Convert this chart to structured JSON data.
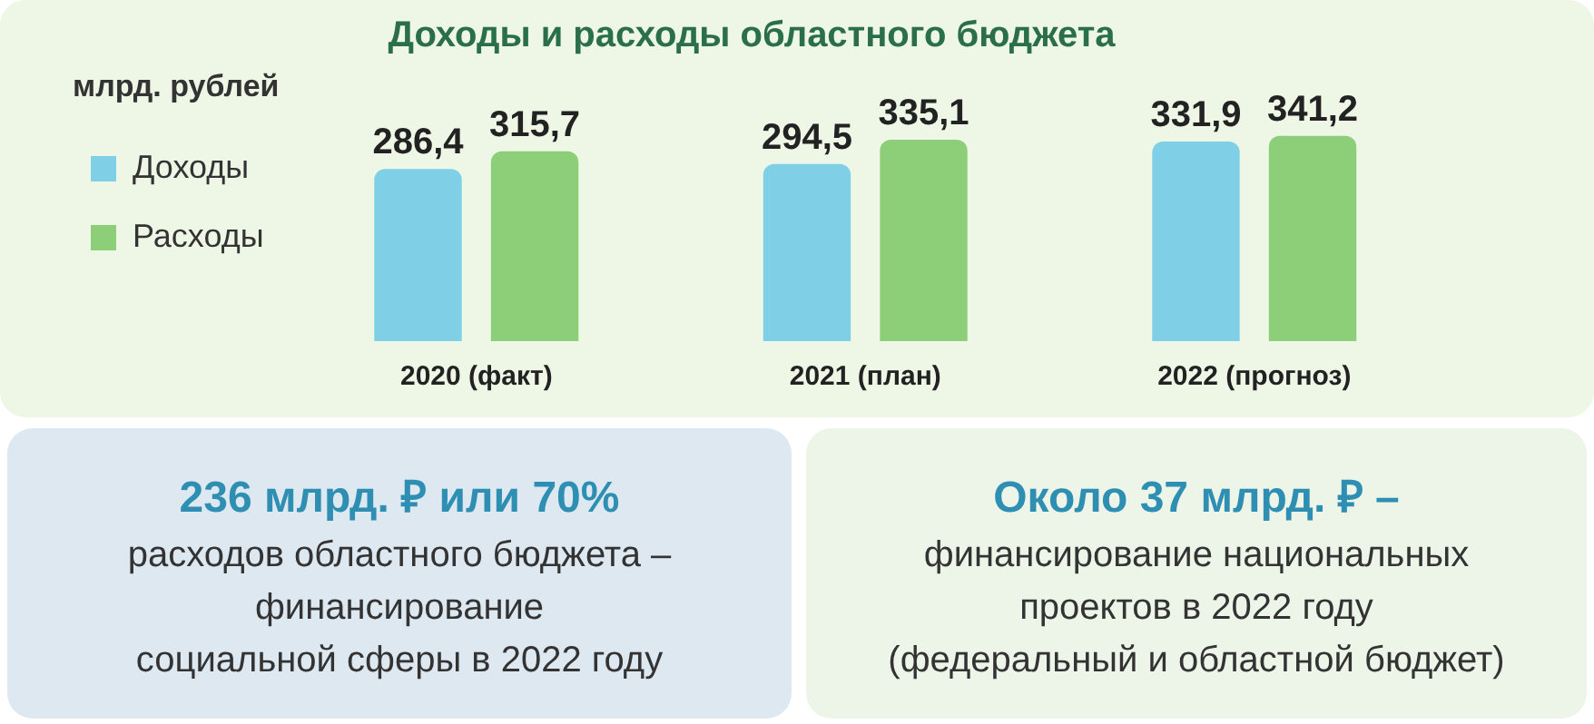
{
  "chart_data": {
    "type": "bar",
    "title": "Доходы и расходы областного бюджета",
    "ylabel": "млрд. рублей",
    "categories": [
      "2020 (факт)",
      "2021 (план)",
      "2022 (прогноз)"
    ],
    "series": [
      {
        "name": "Доходы",
        "color": "#7fd0e6",
        "values": [
          286.4,
          294.5,
          331.9
        ],
        "value_labels": [
          "286,4",
          "294,5",
          "331,9"
        ]
      },
      {
        "name": "Расходы",
        "color": "#8ccf78",
        "values": [
          315.7,
          335.1,
          341.2
        ],
        "value_labels": [
          "315,7",
          "335,1",
          "341,2"
        ]
      }
    ],
    "legend": "left",
    "grid": false,
    "annotations": [
      "236 млрд. ₽ или 70%",
      "расходов областного бюджета –",
      "финансирование",
      "социальной сферы в 2022 году",
      "Около 37 млрд. ₽ –",
      "финансирование национальных",
      "проектов в 2022 году",
      "(федеральный и областной бюджет)"
    ]
  }
}
